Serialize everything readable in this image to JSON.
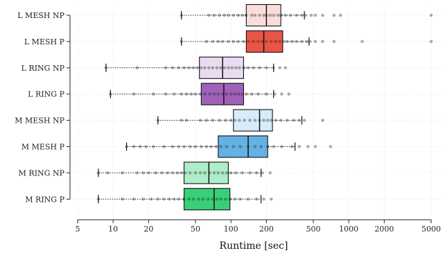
{
  "chart_data": {
    "type": "boxplot",
    "title": "",
    "xlabel": "Runtime [sec]",
    "ylabel": "",
    "xscale": "log",
    "xlim": [
      5,
      5000
    ],
    "xticks": [
      5,
      10,
      20,
      50,
      100,
      200,
      500,
      1000,
      2000,
      5000
    ],
    "xtick_labels": [
      "5",
      "10",
      "20",
      "50",
      "100",
      "200",
      "500",
      "1000",
      "2000",
      "5000"
    ],
    "grid": true,
    "categories": [
      "L MESH NP",
      "L MESH P",
      "L RING NP",
      "L RING P",
      "M MESH NP",
      "M MESH P",
      "M RING NP",
      "M RING P"
    ],
    "series": [
      {
        "category": "L MESH NP",
        "whisker_low": 38,
        "q1": 135,
        "median": 200,
        "q3": 265,
        "whisker_high": 420,
        "color": "#fadbd8",
        "points": [
          38,
          65,
          72,
          80,
          88,
          95,
          105,
          115,
          125,
          135,
          150,
          160,
          175,
          190,
          200,
          215,
          230,
          250,
          265,
          290,
          320,
          360,
          400,
          430,
          480,
          520,
          600,
          750,
          850,
          5000
        ]
      },
      {
        "category": "L MESH P",
        "whisker_low": 38,
        "q1": 135,
        "median": 190,
        "q3": 275,
        "whisker_high": 460,
        "color": "#e74c3c",
        "points": [
          38,
          62,
          70,
          78,
          85,
          95,
          105,
          115,
          128,
          140,
          155,
          170,
          185,
          200,
          220,
          240,
          260,
          280,
          300,
          330,
          360,
          400,
          440,
          470,
          520,
          600,
          750,
          1300,
          5000
        ]
      },
      {
        "category": "L RING NP",
        "whisker_low": 8.7,
        "q1": 54,
        "median": 85,
        "q3": 128,
        "whisker_high": 230,
        "color": "#e8daef",
        "points": [
          8.7,
          16,
          28,
          32,
          36,
          40,
          44,
          48,
          52,
          56,
          60,
          65,
          70,
          76,
          82,
          88,
          95,
          102,
          110,
          118,
          128,
          140,
          155,
          175,
          200,
          230,
          260,
          290
        ]
      },
      {
        "category": "L RING P",
        "whisker_low": 9.5,
        "q1": 56,
        "median": 87,
        "q3": 128,
        "whisker_high": 230,
        "color": "#9b59b6",
        "points": [
          9.5,
          15,
          22,
          28,
          33,
          38,
          42,
          46,
          50,
          55,
          60,
          66,
          72,
          78,
          85,
          92,
          100,
          108,
          116,
          125,
          135,
          150,
          170,
          200,
          235,
          270,
          310
        ]
      },
      {
        "category": "M MESH NP",
        "whisker_low": 24,
        "q1": 105,
        "median": 175,
        "q3": 225,
        "whisker_high": 400,
        "color": "#d6eaf8",
        "points": [
          24,
          38,
          42,
          55,
          62,
          70,
          80,
          90,
          100,
          108,
          118,
          130,
          145,
          160,
          175,
          190,
          205,
          220,
          240,
          265,
          300,
          340,
          380,
          420,
          600
        ]
      },
      {
        "category": "M MESH P",
        "whisker_low": 13,
        "q1": 78,
        "median": 140,
        "q3": 205,
        "whisker_high": 350,
        "color": "#5dade2",
        "points": [
          13,
          15,
          17,
          19,
          22,
          27,
          32,
          36,
          40,
          45,
          50,
          56,
          62,
          68,
          75,
          82,
          92,
          105,
          120,
          140,
          160,
          180,
          205,
          230,
          270,
          330,
          380,
          450,
          520,
          700
        ]
      },
      {
        "category": "M RING NP",
        "whisker_low": 7.5,
        "q1": 40,
        "median": 65,
        "q3": 95,
        "whisker_high": 180,
        "color": "#abebc6",
        "points": [
          7.5,
          9,
          12,
          16,
          18,
          20,
          23,
          26,
          29,
          32,
          35,
          38,
          41,
          45,
          50,
          55,
          60,
          66,
          72,
          78,
          85,
          92,
          100,
          110,
          125,
          145,
          165,
          185,
          215
        ]
      },
      {
        "category": "M RING P",
        "whisker_low": 7.5,
        "q1": 40,
        "median": 72,
        "q3": 98,
        "whisker_high": 180,
        "color": "#2ecc71",
        "points": [
          7.5,
          12,
          15,
          18,
          21,
          24,
          27,
          30,
          33,
          36,
          40,
          44,
          48,
          53,
          58,
          64,
          70,
          76,
          82,
          90,
          98,
          108,
          120,
          140,
          165,
          190,
          220
        ]
      }
    ]
  }
}
